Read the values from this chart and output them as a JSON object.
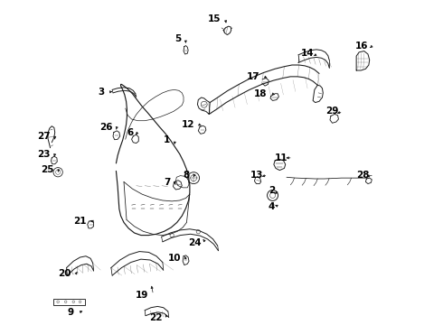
{
  "background_color": "#ffffff",
  "line_color": "#1a1a1a",
  "label_color": "#000000",
  "fig_width": 4.9,
  "fig_height": 3.6,
  "dpi": 100,
  "label_fontsize": 7.5,
  "label_positions": {
    "1": [
      0.368,
      0.618,
      0.378,
      0.6
    ],
    "2": [
      0.638,
      0.488,
      0.632,
      0.475
    ],
    "3": [
      0.198,
      0.742,
      0.225,
      0.745
    ],
    "4": [
      0.638,
      0.445,
      0.632,
      0.453
    ],
    "5": [
      0.395,
      0.88,
      0.408,
      0.868
    ],
    "6": [
      0.272,
      0.638,
      0.278,
      0.632
    ],
    "7": [
      0.368,
      0.508,
      0.382,
      0.512
    ],
    "8": [
      0.418,
      0.528,
      0.428,
      0.522
    ],
    "9": [
      0.118,
      0.172,
      0.148,
      0.178
    ],
    "10": [
      0.395,
      0.312,
      0.405,
      0.318
    ],
    "11": [
      0.672,
      0.572,
      0.66,
      0.572
    ],
    "12": [
      0.43,
      0.658,
      0.448,
      0.655
    ],
    "13": [
      0.608,
      0.528,
      0.598,
      0.522
    ],
    "14": [
      0.738,
      0.842,
      0.732,
      0.832
    ],
    "15": [
      0.498,
      0.93,
      0.512,
      0.92
    ],
    "16": [
      0.878,
      0.862,
      0.878,
      0.852
    ],
    "17": [
      0.598,
      0.782,
      0.618,
      0.778
    ],
    "18": [
      0.618,
      0.738,
      0.638,
      0.735
    ],
    "19": [
      0.312,
      0.218,
      0.318,
      0.248
    ],
    "20": [
      0.112,
      0.272,
      0.128,
      0.278
    ],
    "21": [
      0.152,
      0.408,
      0.162,
      0.408
    ],
    "22": [
      0.348,
      0.158,
      0.355,
      0.168
    ],
    "23": [
      0.058,
      0.582,
      0.068,
      0.575
    ],
    "24": [
      0.448,
      0.352,
      0.452,
      0.362
    ],
    "25": [
      0.068,
      0.542,
      0.078,
      0.535
    ],
    "26": [
      0.218,
      0.652,
      0.228,
      0.645
    ],
    "27": [
      0.058,
      0.628,
      0.07,
      0.62
    ],
    "28": [
      0.882,
      0.528,
      0.868,
      0.522
    ],
    "29": [
      0.802,
      0.692,
      0.792,
      0.685
    ]
  }
}
